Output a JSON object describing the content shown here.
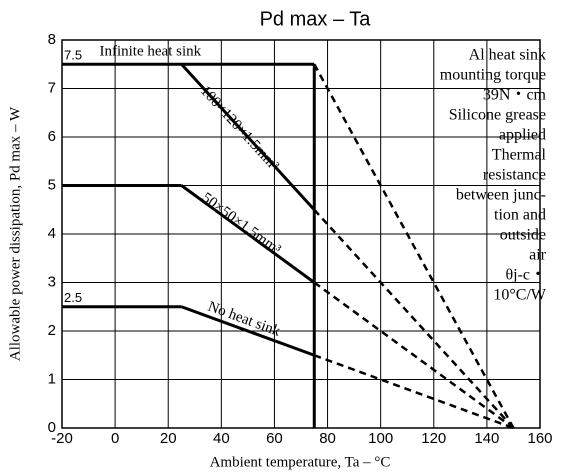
{
  "chart_data": {
    "type": "line",
    "title": "Pd max – Ta",
    "x_label": "Ambient temperature, Ta – °C",
    "y_label": "Allowable power dissipation, Pd max – W",
    "xlim": [
      -20,
      160
    ],
    "xticks": [
      -20,
      0,
      20,
      40,
      60,
      80,
      100,
      120,
      140,
      160
    ],
    "ylim": [
      0,
      8
    ],
    "yticks": [
      0,
      1,
      2,
      3,
      4,
      5,
      6,
      7,
      8
    ],
    "grid": true,
    "series": [
      {
        "name": "Infinite heat sink",
        "color": "#000000",
        "x": [
          -20,
          75,
          150
        ],
        "values": [
          7.5,
          7.5,
          0
        ],
        "styles": [
          "solid",
          "dashed"
        ]
      },
      {
        "name": "100×120×1.5mm³",
        "color": "#000000",
        "x": [
          25,
          75,
          150
        ],
        "values": [
          7.5,
          4.5,
          0
        ],
        "styles": [
          "solid",
          "dashed"
        ]
      },
      {
        "name": "50×50×1.5mm³",
        "color": "#000000",
        "x": [
          -20,
          25,
          75,
          150
        ],
        "values": [
          5,
          5,
          3,
          0
        ],
        "styles": [
          "solid",
          "solid",
          "dashed"
        ]
      },
      {
        "name": "No heat sink",
        "color": "#000000",
        "x": [
          -20,
          25,
          75,
          150
        ],
        "values": [
          2.5,
          2.5,
          1.5,
          0
        ],
        "styles": [
          "solid",
          "solid",
          "dashed"
        ]
      }
    ],
    "vertical_line": {
      "x": 75,
      "y": [
        7.5,
        0
      ]
    },
    "annotations": [
      {
        "text": "7.5",
        "y": 7.5
      },
      {
        "text": "2.5",
        "y": 2.5
      }
    ],
    "note": [
      "Al heat sink",
      "mounting torque",
      "39N・cm",
      "Silicone grease",
      "applied",
      "Thermal",
      "resistance",
      "between junc-",
      "tion and",
      "outside",
      "air",
      "θj-c・",
      "10°C/W"
    ]
  }
}
